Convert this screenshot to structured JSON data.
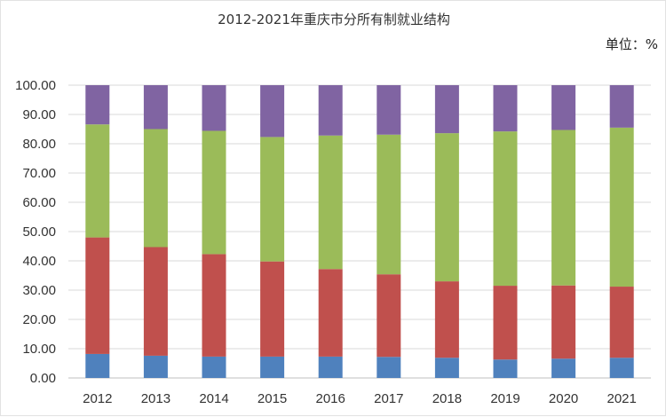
{
  "chart_data": {
    "type": "bar",
    "stacked": true,
    "title": "2012-2021年重庆市分所有制就业结构",
    "unit_label": "单位：%",
    "categories": [
      "2012",
      "2013",
      "2014",
      "2015",
      "2016",
      "2017",
      "2018",
      "2019",
      "2020",
      "2021"
    ],
    "series": [
      {
        "color": "#4f81bd",
        "values": [
          8.2,
          7.6,
          7.3,
          7.3,
          7.3,
          7.2,
          6.9,
          6.3,
          6.6,
          6.9
        ]
      },
      {
        "color": "#c0504d",
        "values": [
          39.8,
          37.1,
          35.0,
          32.5,
          29.9,
          28.2,
          26.1,
          25.2,
          25.0,
          24.3
        ]
      },
      {
        "color": "#9bbb59",
        "values": [
          38.6,
          40.3,
          42.1,
          42.5,
          45.6,
          47.7,
          50.6,
          52.7,
          53.1,
          54.3
        ]
      },
      {
        "color": "#8064a2",
        "values": [
          13.4,
          15.0,
          15.6,
          17.7,
          17.2,
          16.9,
          16.4,
          15.8,
          15.3,
          14.5
        ]
      }
    ],
    "ylim": [
      0,
      100
    ],
    "yticks": [
      "0.00",
      "10.00",
      "20.00",
      "30.00",
      "40.00",
      "50.00",
      "60.00",
      "70.00",
      "80.00",
      "90.00",
      "100.00"
    ],
    "grid": true
  }
}
